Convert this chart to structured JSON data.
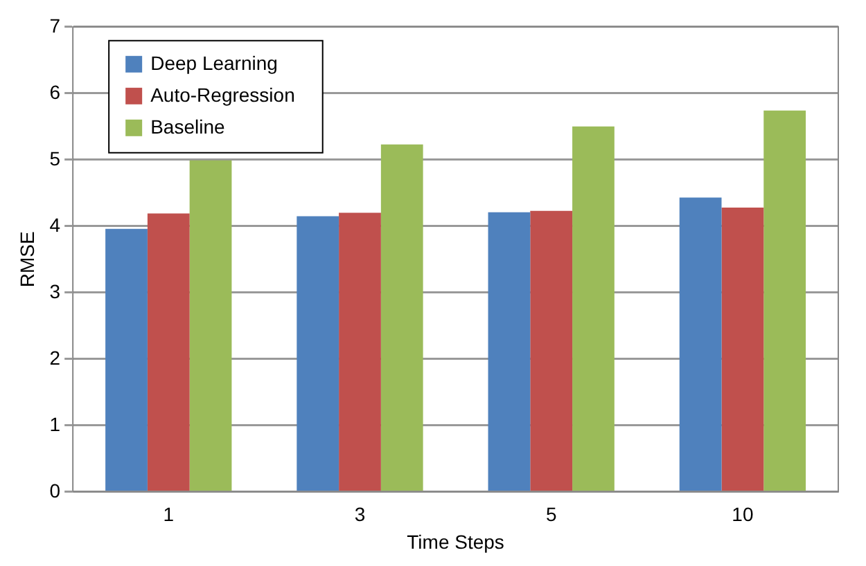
{
  "chart_data": {
    "type": "bar",
    "xlabel": "Time Steps",
    "ylabel": "RMSE",
    "categories": [
      "1",
      "3",
      "5",
      "10"
    ],
    "series": [
      {
        "name": "Deep Learning",
        "color": "#4f81bd",
        "values": [
          3.96,
          4.15,
          4.21,
          4.43
        ]
      },
      {
        "name": "Auto-Regression",
        "color": "#c0504d",
        "values": [
          4.19,
          4.2,
          4.23,
          4.28
        ]
      },
      {
        "name": "Baseline",
        "color": "#9bbb59",
        "values": [
          4.99,
          5.23,
          5.5,
          5.74
        ]
      }
    ],
    "ylim": [
      0,
      7
    ],
    "yticks": [
      0,
      1,
      2,
      3,
      4,
      5,
      6,
      7
    ],
    "grid": "y",
    "legend": "top left"
  }
}
